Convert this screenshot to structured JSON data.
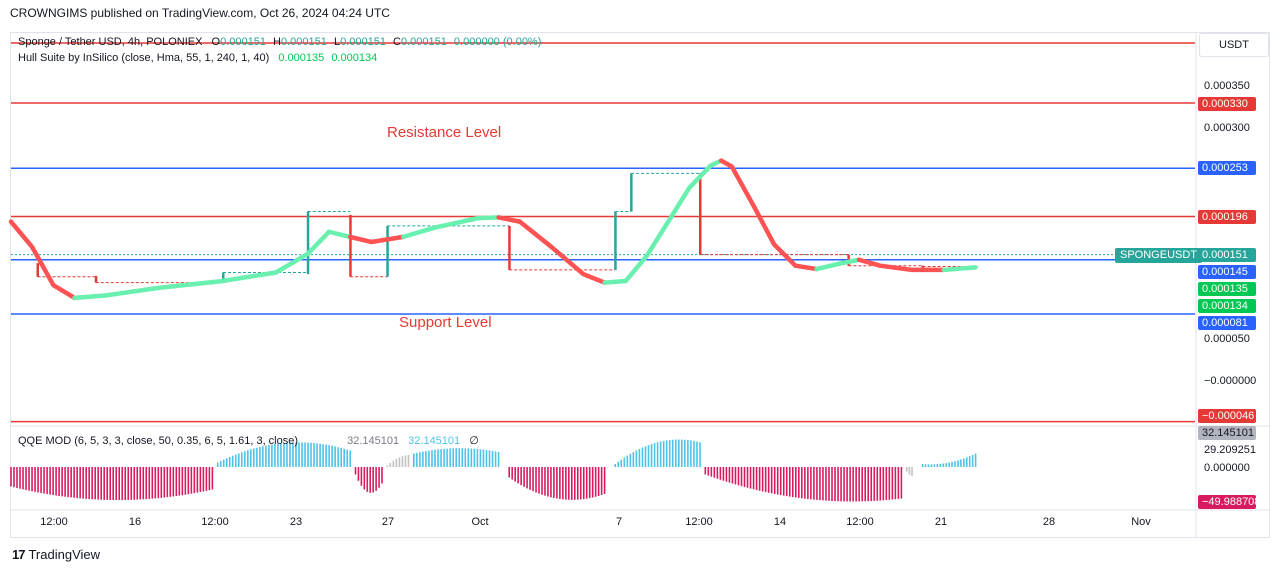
{
  "header": {
    "publisher_text": "CROWNGIMS published on TradingView.com, Oct 26, 2024 04:24 UTC"
  },
  "legend": {
    "symbol_line": "Sponge / Tether USD, 4h, POLONIEX",
    "ohlc": {
      "o_label": "O",
      "o": "0.000151",
      "h_label": "H",
      "h": "0.000151",
      "l_label": "L",
      "l": "0.000151",
      "c_label": "C",
      "c": "0.000151",
      "change": "0.000000 (0.00%)"
    },
    "hull_label": "Hull Suite by InSilico (close, Hma, 55, 1, 240, 1, 40)",
    "hull_v1": "0.000135",
    "hull_v2": "0.000134",
    "qqe_label": "QQE MOD (6, 5, 3, 3, close, 50, 0.35, 6, 5, 1.61, 3, close)",
    "qqe_v1": "32.145101",
    "qqe_v2": "32.145101",
    "qqe_v3": "∅"
  },
  "currency_button": "USDT",
  "annotations": {
    "resistance": "Resistance Level",
    "support": "Support Level"
  },
  "symbol_tag": "SPONGEUSDT",
  "colors": {
    "red": "#e53935",
    "blue": "#2962ff",
    "teal": "#26a69a",
    "green": "#00c853",
    "hull_green": "#69f0ae",
    "hull_red": "#ff5252",
    "qqe_pink": "#d81b60",
    "qqe_cyan": "#4dc3e8",
    "qqe_gray": "#c2c2c2"
  },
  "chart_data": [
    {
      "type": "line",
      "name_shown": "Sponge / Tether USD, 4h, POLONIEX",
      "y_axis_ticks": [
        "0.000350",
        "0.000300",
        "0.000050",
        "−0.000000"
      ],
      "ylim": [
        -4.6e-05,
        0.0004
      ],
      "horizontal_levels": [
        {
          "value": 0.00033,
          "color": "red",
          "label": "0.000330"
        },
        {
          "value": 0.000253,
          "color": "blue",
          "label": "0.000253"
        },
        {
          "value": 0.000196,
          "color": "red",
          "label": "0.000196"
        },
        {
          "value": 0.000145,
          "color": "blue",
          "label": "0.000145"
        },
        {
          "value": 8.1e-05,
          "color": "blue",
          "label": "0.000081"
        },
        {
          "value": -4.6e-05,
          "color": "red",
          "label": "−0.000046"
        }
      ],
      "price_tags": [
        {
          "label": "0.000151",
          "color": "teal"
        },
        {
          "label": "0.000145",
          "color": "blue"
        },
        {
          "label": "0.000135",
          "color": "green"
        },
        {
          "label": "0.000134",
          "color": "green"
        }
      ],
      "x_tick_labels": [
        "12:00",
        "16",
        "12:00",
        "23",
        "27",
        "Oct",
        "7",
        "12:00",
        "14",
        "12:00",
        "21",
        "28",
        "Nov"
      ],
      "hull_suite": {
        "points": [
          [
            0,
            0.00019
          ],
          [
            2,
            0.00016
          ],
          [
            4,
            0.000115
          ],
          [
            6,
            0.0001
          ],
          [
            9,
            0.000103
          ],
          [
            14,
            0.000112
          ],
          [
            20,
            0.00012
          ],
          [
            25,
            0.00013
          ],
          [
            28,
            0.000152
          ],
          [
            30,
            0.000178
          ],
          [
            32,
            0.000172
          ],
          [
            34,
            0.000166
          ],
          [
            37,
            0.000172
          ],
          [
            40,
            0.000183
          ],
          [
            44,
            0.000194
          ],
          [
            46,
            0.000195
          ],
          [
            48,
            0.00019
          ],
          [
            51,
            0.00016
          ],
          [
            54,
            0.000128
          ],
          [
            56,
            0.000118
          ],
          [
            58,
            0.00012
          ],
          [
            60,
            0.00015
          ],
          [
            62,
            0.00019
          ],
          [
            64,
            0.00023
          ],
          [
            66,
            0.000256
          ],
          [
            67,
            0.000262
          ],
          [
            68,
            0.000255
          ],
          [
            70,
            0.00021
          ],
          [
            72,
            0.000163
          ],
          [
            74,
            0.000138
          ],
          [
            76,
            0.000134
          ],
          [
            78,
            0.00014
          ],
          [
            80,
            0.000145
          ],
          [
            82,
            0.000138
          ],
          [
            85,
            0.000133
          ],
          [
            88,
            0.000133
          ],
          [
            91,
            0.000136
          ]
        ],
        "trend": [
          "down",
          "down",
          "down",
          "up",
          "up",
          "up",
          "up",
          "up",
          "up",
          "up",
          "down",
          "down",
          "up",
          "up",
          "up",
          "down",
          "down",
          "down",
          "down",
          "up",
          "up",
          "up",
          "up",
          "up",
          "up",
          "down",
          "down",
          "down",
          "down",
          "down",
          "up",
          "up",
          "down",
          "down",
          "down",
          "up",
          "up"
        ]
      },
      "candle_blocks": [
        {
          "x": 2.5,
          "open": 0.000141,
          "close": 0.000125,
          "color": "red"
        },
        {
          "x": 8,
          "open": 0.000126,
          "close": 0.000118,
          "color": "red"
        },
        {
          "x": 20,
          "open": 0.000118,
          "close": 0.00013,
          "color": "teal"
        },
        {
          "x": 28,
          "open": 0.000128,
          "close": 0.000202,
          "color": "teal"
        },
        {
          "x": 32,
          "open": 0.000198,
          "close": 0.000125,
          "color": "red"
        },
        {
          "x": 35.5,
          "open": 0.000125,
          "close": 0.000185,
          "color": "teal"
        },
        {
          "x": 47,
          "open": 0.000185,
          "close": 0.000133,
          "color": "red"
        },
        {
          "x": 57,
          "open": 0.000133,
          "close": 0.000202,
          "color": "teal"
        },
        {
          "x": 58.5,
          "open": 0.000202,
          "close": 0.000247,
          "color": "teal"
        },
        {
          "x": 65,
          "open": 0.000247,
          "close": 0.000151,
          "color": "red"
        },
        {
          "x": 79,
          "open": 0.000151,
          "close": 0.000138,
          "color": "red"
        },
        {
          "x": 86,
          "open": 0.000138,
          "close": 0.000137,
          "color": "red"
        }
      ]
    },
    {
      "type": "bar",
      "name_shown": "QQE MOD (6, 5, 3, 3, close, 50, 0.35, 6, 5, 1.61, 3, close)",
      "y_axis_ticks": [
        "32.145101",
        "29.209251",
        "0.000000",
        "−49.988708"
      ],
      "ylim": [
        -60,
        40
      ],
      "segments": [
        {
          "from": 0,
          "to": 19,
          "color": "pink",
          "start": -26,
          "peak": -44,
          "end": -30
        },
        {
          "from": 19.5,
          "to": 32,
          "color": "cyan",
          "start": 6,
          "peak": 32,
          "end": 22
        },
        {
          "from": 32.5,
          "to": 35,
          "color": "pink",
          "start": -10,
          "peak": -34,
          "end": -22
        },
        {
          "from": 35.5,
          "to": 37.5,
          "color": "gray",
          "start": 2,
          "peak": 12,
          "end": 16
        },
        {
          "from": 38,
          "to": 46,
          "color": "cyan",
          "start": 18,
          "peak": 25,
          "end": 20
        },
        {
          "from": 47,
          "to": 56,
          "color": "pink",
          "start": -14,
          "peak": -42,
          "end": -36
        },
        {
          "from": 57,
          "to": 65,
          "color": "cyan",
          "start": 4,
          "peak": 33,
          "end": 33
        },
        {
          "from": 65.5,
          "to": 84,
          "color": "pink",
          "start": -10,
          "peak": -42,
          "end": -42
        },
        {
          "from": 84.5,
          "to": 85,
          "color": "gray",
          "start": -6,
          "peak": -10,
          "end": -12
        },
        {
          "from": 86,
          "to": 91,
          "color": "cyan",
          "start": 4,
          "peak": 6,
          "end": 18
        }
      ]
    }
  ],
  "footer": {
    "logo_text": "TradingView"
  }
}
